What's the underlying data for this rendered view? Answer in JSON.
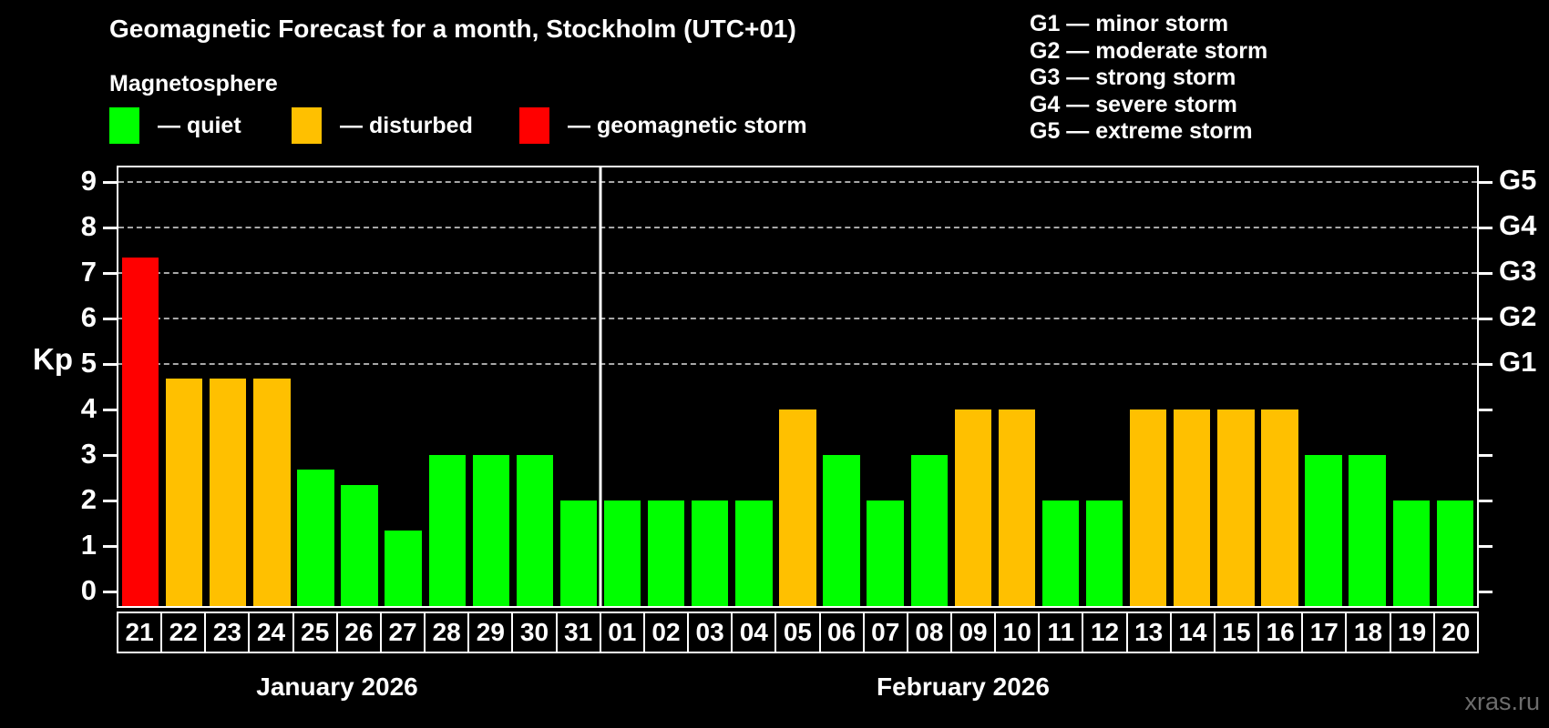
{
  "page": {
    "title": "Geomagnetic Forecast for a month, Stockholm (UTC+01)",
    "watermark": "xras.ru"
  },
  "legend": {
    "title": "Magnetosphere",
    "items": [
      {
        "key": "quiet",
        "label": "— quiet",
        "color": "#00ff00"
      },
      {
        "key": "disturbed",
        "label": "— disturbed",
        "color": "#ffc000"
      },
      {
        "key": "storm",
        "label": "— geomagnetic storm",
        "color": "#ff0000"
      }
    ]
  },
  "g_legend": [
    "G1 — minor storm",
    "G2 — moderate storm",
    "G3 — strong storm",
    "G4 — severe storm",
    "G5 — extreme storm"
  ],
  "chart_data": {
    "type": "bar",
    "title": "Geomagnetic Forecast for a month, Stockholm (UTC+01)",
    "ylabel": "Kp",
    "ylim": [
      -0.33,
      9.33
    ],
    "yticks": [
      0,
      1,
      2,
      3,
      4,
      5,
      6,
      7,
      8,
      9
    ],
    "gridlines_at": [
      5,
      6,
      7,
      8,
      9
    ],
    "grid_style": "dashed horizontal lines at storm levels only",
    "right_axis": [
      {
        "kp": 5,
        "label": "G1"
      },
      {
        "kp": 6,
        "label": "G2"
      },
      {
        "kp": 7,
        "label": "G3"
      },
      {
        "kp": 8,
        "label": "G4"
      },
      {
        "kp": 9,
        "label": "G5"
      }
    ],
    "status_colors": {
      "quiet": "#00ff00",
      "disturbed": "#ffc000",
      "storm": "#ff0000"
    },
    "months": [
      {
        "label": "January 2026",
        "day_count": 11
      },
      {
        "label": "February 2026",
        "day_count": 20
      }
    ],
    "bars": [
      {
        "month": 0,
        "day": "21",
        "kp": 7.33,
        "status": "storm"
      },
      {
        "month": 0,
        "day": "22",
        "kp": 4.67,
        "status": "disturbed"
      },
      {
        "month": 0,
        "day": "23",
        "kp": 4.67,
        "status": "disturbed"
      },
      {
        "month": 0,
        "day": "24",
        "kp": 4.67,
        "status": "disturbed"
      },
      {
        "month": 0,
        "day": "25",
        "kp": 2.67,
        "status": "quiet"
      },
      {
        "month": 0,
        "day": "26",
        "kp": 2.33,
        "status": "quiet"
      },
      {
        "month": 0,
        "day": "27",
        "kp": 1.33,
        "status": "quiet"
      },
      {
        "month": 0,
        "day": "28",
        "kp": 3,
        "status": "quiet"
      },
      {
        "month": 0,
        "day": "29",
        "kp": 3,
        "status": "quiet"
      },
      {
        "month": 0,
        "day": "30",
        "kp": 3,
        "status": "quiet"
      },
      {
        "month": 0,
        "day": "31",
        "kp": 2,
        "status": "quiet"
      },
      {
        "month": 1,
        "day": "01",
        "kp": 2,
        "status": "quiet"
      },
      {
        "month": 1,
        "day": "02",
        "kp": 2,
        "status": "quiet"
      },
      {
        "month": 1,
        "day": "03",
        "kp": 2,
        "status": "quiet"
      },
      {
        "month": 1,
        "day": "04",
        "kp": 2,
        "status": "quiet"
      },
      {
        "month": 1,
        "day": "05",
        "kp": 4,
        "status": "disturbed"
      },
      {
        "month": 1,
        "day": "06",
        "kp": 3,
        "status": "quiet"
      },
      {
        "month": 1,
        "day": "07",
        "kp": 2,
        "status": "quiet"
      },
      {
        "month": 1,
        "day": "08",
        "kp": 3,
        "status": "quiet"
      },
      {
        "month": 1,
        "day": "09",
        "kp": 4,
        "status": "disturbed"
      },
      {
        "month": 1,
        "day": "10",
        "kp": 4,
        "status": "disturbed"
      },
      {
        "month": 1,
        "day": "11",
        "kp": 2,
        "status": "quiet"
      },
      {
        "month": 1,
        "day": "12",
        "kp": 2,
        "status": "quiet"
      },
      {
        "month": 1,
        "day": "13",
        "kp": 4,
        "status": "disturbed"
      },
      {
        "month": 1,
        "day": "14",
        "kp": 4,
        "status": "disturbed"
      },
      {
        "month": 1,
        "day": "15",
        "kp": 4,
        "status": "disturbed"
      },
      {
        "month": 1,
        "day": "16",
        "kp": 4,
        "status": "disturbed"
      },
      {
        "month": 1,
        "day": "17",
        "kp": 3,
        "status": "quiet"
      },
      {
        "month": 1,
        "day": "18",
        "kp": 3,
        "status": "quiet"
      },
      {
        "month": 1,
        "day": "19",
        "kp": 2,
        "status": "quiet"
      },
      {
        "month": 1,
        "day": "20",
        "kp": 2,
        "status": "quiet"
      }
    ]
  }
}
